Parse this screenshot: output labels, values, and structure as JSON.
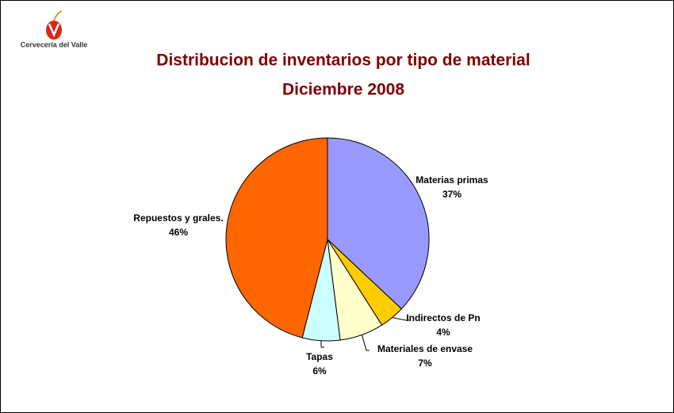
{
  "logo_text": "Cervecería del Valle",
  "chart_data": {
    "type": "pie",
    "title": "Distribucion de inventarios por tipo de material",
    "subtitle": "Diciembre 2008",
    "categories": [
      "Materias primas",
      "Indirectos de Pn",
      "Materiales de envase",
      "Tapas",
      "Repuestos y grales."
    ],
    "values": [
      37,
      4,
      7,
      6,
      46
    ],
    "value_labels": [
      "37%",
      "4%",
      "7%",
      "6%",
      "46%"
    ],
    "colors": [
      "#9999ff",
      "#ffcc00",
      "#ffffcc",
      "#ccffff",
      "#ff6600"
    ]
  }
}
